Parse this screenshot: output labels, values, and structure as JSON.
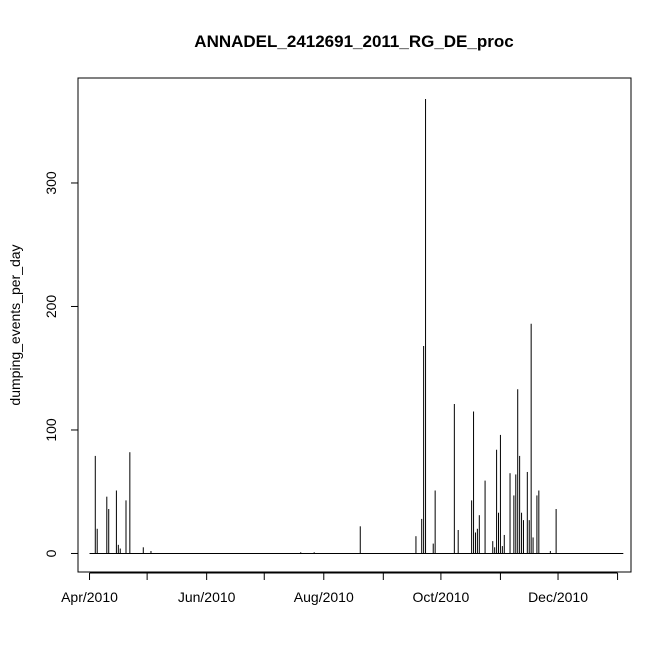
{
  "chart_data": {
    "type": "bar",
    "title": "ANNADEL_2412691_2011_RG_DE_proc",
    "xlabel": "",
    "ylabel": "dumping_events_per_day",
    "xlim": [
      "2010-03-26",
      "2011-01-08"
    ],
    "ylim": [
      -15,
      385
    ],
    "x_ticks": [
      "2010-04-01",
      "2010-05-01",
      "2010-06-01",
      "2010-07-01",
      "2010-08-01",
      "2010-09-01",
      "2010-10-01",
      "2010-11-01",
      "2010-12-01",
      "2011-01-01"
    ],
    "x_tick_labels": [
      "Apr/2010",
      "",
      "Jun/2010",
      "",
      "Aug/2010",
      "",
      "Oct/2010",
      "",
      "Dec/2010",
      ""
    ],
    "y_ticks": [
      0,
      100,
      200,
      300
    ],
    "y_tick_labels": [
      "0",
      "100",
      "200",
      "300"
    ],
    "baseline_range": [
      "2010-04-01",
      "2011-01-04"
    ],
    "series": [
      {
        "points": [
          {
            "x": "2010-04-04",
            "y": 79
          },
          {
            "x": "2010-04-05",
            "y": 20
          },
          {
            "x": "2010-04-10",
            "y": 46
          },
          {
            "x": "2010-04-11",
            "y": 36
          },
          {
            "x": "2010-04-15",
            "y": 51
          },
          {
            "x": "2010-04-16",
            "y": 7
          },
          {
            "x": "2010-04-17",
            "y": 4
          },
          {
            "x": "2010-04-20",
            "y": 43
          },
          {
            "x": "2010-04-22",
            "y": 82
          },
          {
            "x": "2010-04-29",
            "y": 5
          },
          {
            "x": "2010-05-03",
            "y": 2
          },
          {
            "x": "2010-07-20",
            "y": 1
          },
          {
            "x": "2010-07-27",
            "y": 1
          },
          {
            "x": "2010-08-20",
            "y": 22
          },
          {
            "x": "2010-09-18",
            "y": 14
          },
          {
            "x": "2010-09-21",
            "y": 28
          },
          {
            "x": "2010-09-22",
            "y": 168
          },
          {
            "x": "2010-09-23",
            "y": 368
          },
          {
            "x": "2010-09-27",
            "y": 8
          },
          {
            "x": "2010-09-28",
            "y": 51
          },
          {
            "x": "2010-10-08",
            "y": 121
          },
          {
            "x": "2010-10-10",
            "y": 19
          },
          {
            "x": "2010-10-17",
            "y": 43
          },
          {
            "x": "2010-10-18",
            "y": 115
          },
          {
            "x": "2010-10-19",
            "y": 17
          },
          {
            "x": "2010-10-20",
            "y": 20
          },
          {
            "x": "2010-10-21",
            "y": 31
          },
          {
            "x": "2010-10-24",
            "y": 59
          },
          {
            "x": "2010-10-28",
            "y": 10
          },
          {
            "x": "2010-10-29",
            "y": 5
          },
          {
            "x": "2010-10-30",
            "y": 84
          },
          {
            "x": "2010-10-31",
            "y": 33
          },
          {
            "x": "2010-11-01",
            "y": 96
          },
          {
            "x": "2010-11-02",
            "y": 6
          },
          {
            "x": "2010-11-03",
            "y": 15
          },
          {
            "x": "2010-11-06",
            "y": 65
          },
          {
            "x": "2010-11-08",
            "y": 47
          },
          {
            "x": "2010-11-09",
            "y": 64
          },
          {
            "x": "2010-11-10",
            "y": 133
          },
          {
            "x": "2010-11-11",
            "y": 79
          },
          {
            "x": "2010-11-12",
            "y": 33
          },
          {
            "x": "2010-11-13",
            "y": 27
          },
          {
            "x": "2010-11-15",
            "y": 66
          },
          {
            "x": "2010-11-16",
            "y": 27
          },
          {
            "x": "2010-11-17",
            "y": 186
          },
          {
            "x": "2010-11-18",
            "y": 13
          },
          {
            "x": "2010-11-20",
            "y": 47
          },
          {
            "x": "2010-11-21",
            "y": 51
          },
          {
            "x": "2010-11-27",
            "y": 2
          },
          {
            "x": "2010-11-30",
            "y": 36
          }
        ]
      }
    ],
    "line_color": "#000000",
    "grid": false
  }
}
